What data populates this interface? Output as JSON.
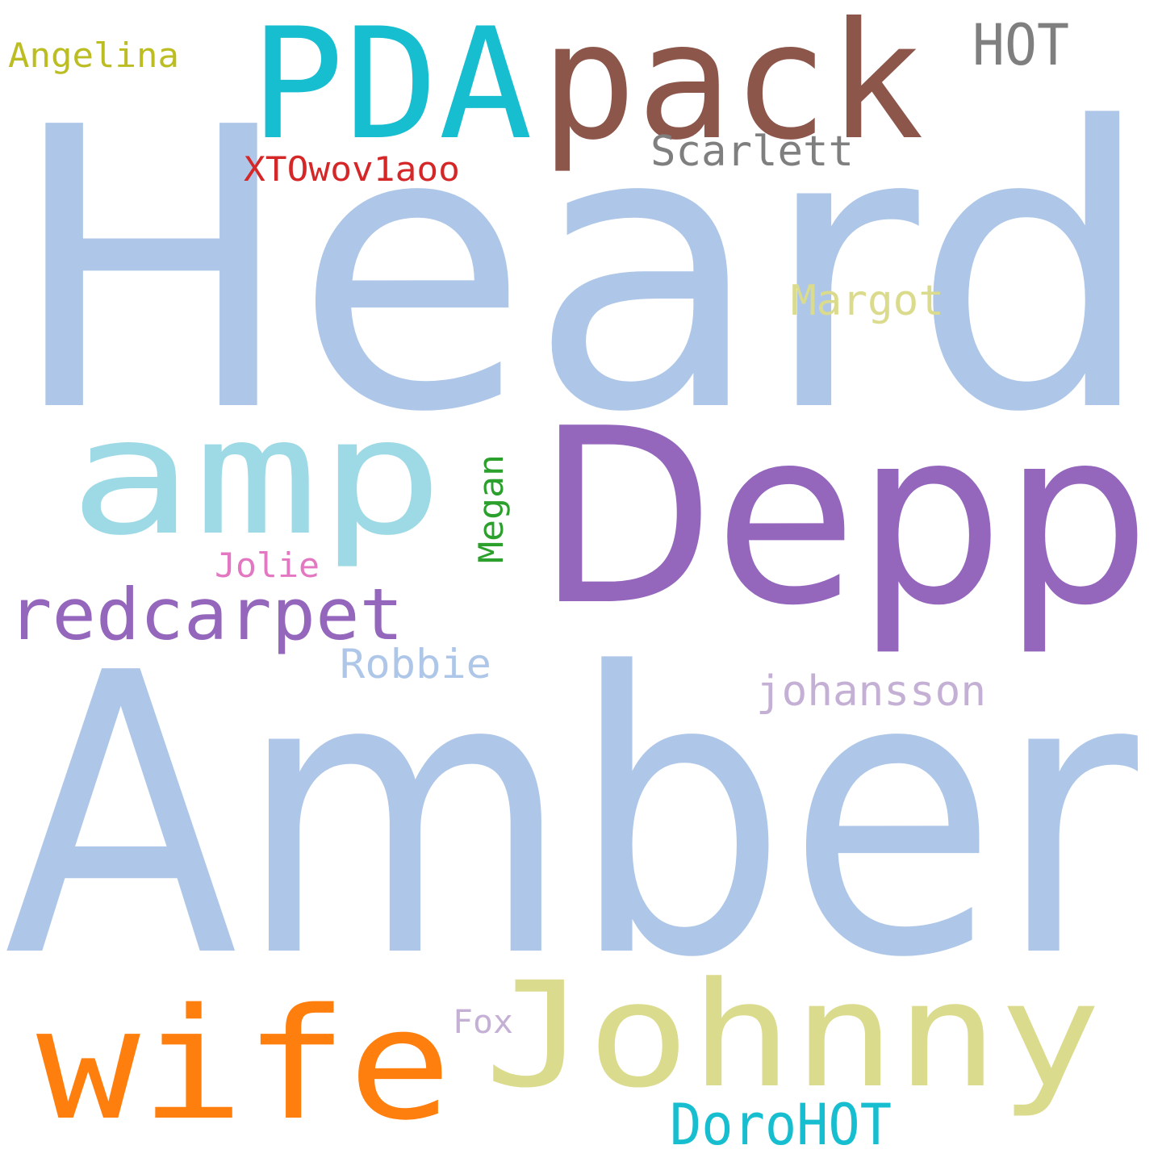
{
  "words": {
    "heard": {
      "text": "Heard",
      "color": "#aec7e8"
    },
    "amber": {
      "text": "Amber",
      "color": "#aec7e8"
    },
    "depp": {
      "text": "Depp",
      "color": "#9467bd"
    },
    "pack": {
      "text": "pack",
      "color": "#8c564b"
    },
    "pda": {
      "text": "PDA",
      "color": "#17becf"
    },
    "amp": {
      "text": "amp",
      "color": "#9edae5"
    },
    "johnny": {
      "text": "Johnny",
      "color": "#dbdb8d"
    },
    "wife": {
      "text": "wife",
      "color": "#ff7f0e"
    },
    "redcarpet": {
      "text": "redcarpet",
      "color": "#9467bd"
    },
    "hot": {
      "text": "HOT",
      "color": "#7f7f7f"
    },
    "scarlett": {
      "text": "Scarlett",
      "color": "#7f7f7f"
    },
    "xto": {
      "text": "XTOwov1aoo",
      "color": "#d62728"
    },
    "angelina": {
      "text": "Angelina",
      "color": "#bcbd22"
    },
    "margot": {
      "text": "Margot",
      "color": "#dbdb8d"
    },
    "megan": {
      "text": "Megan",
      "color": "#2ca02c"
    },
    "jolie": {
      "text": "Jolie",
      "color": "#e377c2"
    },
    "robbie": {
      "text": "Robbie",
      "color": "#aec7e8"
    },
    "johansson": {
      "text": "johansson",
      "color": "#c5b0d5"
    },
    "fox": {
      "text": "Fox",
      "color": "#c5b0d5"
    },
    "dorohot": {
      "text": "DoroHOT",
      "color": "#17becf"
    }
  }
}
